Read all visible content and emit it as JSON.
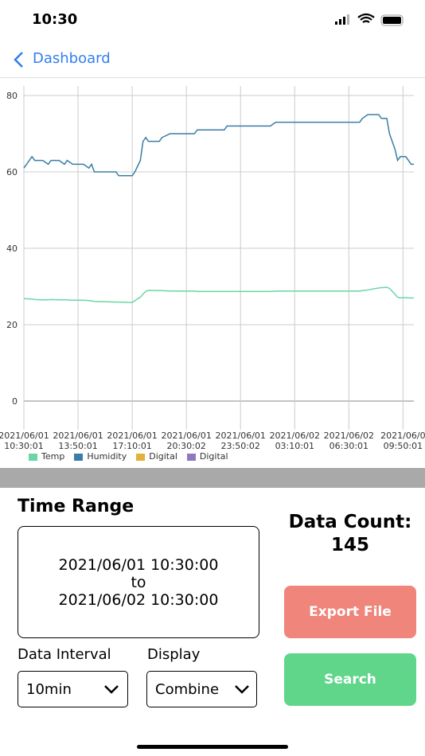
{
  "status_bar": {
    "time": "10:30"
  },
  "nav": {
    "back": "Dashboard"
  },
  "chart_data": {
    "type": "line",
    "x": [
      0,
      1,
      3,
      4,
      7,
      9,
      10,
      13,
      15,
      16,
      18,
      22,
      24,
      25,
      26,
      34,
      35,
      40,
      41,
      43,
      44,
      45,
      46,
      50,
      51,
      54,
      63,
      64,
      74,
      75,
      91,
      93,
      124,
      125,
      127,
      131,
      132,
      134,
      135,
      137,
      138,
      139,
      141,
      142,
      143,
      144
    ],
    "series": [
      {
        "name": "Temp",
        "color": "#6ad6a6",
        "values": [
          26.8,
          26.8,
          26.7,
          26.6,
          26.5,
          26.5,
          26.6,
          26.5,
          26.5,
          26.5,
          26.4,
          26.4,
          26.3,
          26.2,
          26.1,
          25.9,
          25.9,
          25.8,
          26.3,
          27.2,
          28,
          28.7,
          29,
          28.9,
          28.9,
          28.8,
          28.8,
          28.7,
          28.7,
          28.7,
          28.7,
          28.8,
          28.8,
          28.9,
          29.1,
          29.6,
          29.7,
          29.8,
          29.5,
          28,
          27.2,
          27,
          27.1,
          27,
          27,
          27
        ]
      },
      {
        "name": "Humidity",
        "color": "#3a7ea6",
        "values": [
          61,
          62,
          64,
          63,
          63,
          62,
          63,
          63,
          62,
          63,
          62,
          62,
          61,
          62,
          60,
          60,
          59,
          59,
          60,
          63,
          68,
          69,
          68,
          68,
          69,
          70,
          70,
          71,
          71,
          72,
          72,
          73,
          73,
          74,
          75,
          75,
          74,
          74,
          70,
          66,
          63,
          64,
          64,
          63,
          62,
          62
        ]
      },
      {
        "name": "Digital",
        "color": "#e2b23a"
      },
      {
        "name": "Digital",
        "color": "#8f78bb"
      }
    ],
    "xlim": [
      0,
      144
    ],
    "ylim": [
      -7.5,
      82.5
    ],
    "yticks": [
      0,
      20,
      40,
      60,
      80
    ],
    "xticks": [
      {
        "value": 0,
        "label": "2021/06/01\n10:30:01"
      },
      {
        "value": 20,
        "label": "2021/06/01\n13:50:01"
      },
      {
        "value": 40,
        "label": "2021/06/01\n17:10:01"
      },
      {
        "value": 60,
        "label": "2021/06/01\n20:30:02"
      },
      {
        "value": 80,
        "label": "2021/06/01\n23:50:02"
      },
      {
        "value": 100,
        "label": "2021/06/02\n03:10:01"
      },
      {
        "value": 120,
        "label": "2021/06/02\n06:30:01"
      },
      {
        "value": 140,
        "label": "2021/06/0\n09:50:01"
      }
    ],
    "grid": true
  },
  "controls": {
    "time_range": {
      "title": "Time Range",
      "start": "2021/06/01 10:30:00",
      "to": "to",
      "end": "2021/06/02 10:30:00"
    },
    "data_count": {
      "label": "Data Count:",
      "value": "145"
    },
    "export": "Export File",
    "search": "Search",
    "interval": {
      "label": "Data Interval",
      "value": "10min"
    },
    "display": {
      "label": "Display",
      "value": "Combine"
    }
  }
}
